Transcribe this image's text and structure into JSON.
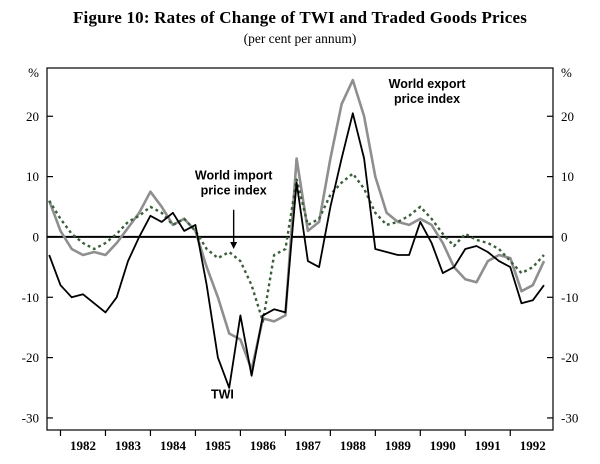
{
  "figure": {
    "title": "Figure 10: Rates of Change of TWI and Traded Goods Prices",
    "subtitle": "(per cent per annum)"
  },
  "chart_data": {
    "type": "line",
    "title": "Figure 10: Rates of Change of TWI and Traded Goods Prices",
    "subtitle": "(per cent per annum)",
    "ylabel": "%",
    "xlabel": "",
    "grid": false,
    "legend": "inline-annotations",
    "xlim": [
      1981.7,
      1992.95
    ],
    "ylim": [
      -32,
      28
    ],
    "y_ticks": [
      20,
      10,
      0,
      -10,
      -20,
      -30
    ],
    "x_tick_years": [
      1982,
      1983,
      1984,
      1985,
      1986,
      1987,
      1988,
      1989,
      1990,
      1991,
      1992
    ],
    "zero_line": true,
    "x": [
      1981.75,
      1982,
      1982.25,
      1982.5,
      1982.75,
      1983,
      1983.25,
      1983.5,
      1983.75,
      1984,
      1984.25,
      1984.5,
      1984.75,
      1985,
      1985.25,
      1985.5,
      1985.75,
      1986,
      1986.25,
      1986.5,
      1986.75,
      1987,
      1987.25,
      1987.5,
      1987.75,
      1988,
      1988.25,
      1988.5,
      1988.75,
      1989,
      1989.25,
      1989.5,
      1989.75,
      1990,
      1990.25,
      1990.5,
      1990.75,
      1991,
      1991.25,
      1991.5,
      1991.75,
      1992,
      1992.25,
      1992.5,
      1992.75
    ],
    "series": [
      {
        "name": "World export price index",
        "color": "#8f8f8f",
        "style": "solid",
        "width": 2.6,
        "values": [
          6,
          1,
          -2,
          -3,
          -2.5,
          -3,
          -1,
          1.5,
          4,
          7.5,
          5,
          2,
          3,
          1,
          -5,
          -10,
          -16,
          -17,
          -22,
          -13.5,
          -14,
          -13,
          13,
          1,
          2.5,
          13,
          22,
          26,
          20,
          10,
          4,
          2.5,
          2,
          3,
          2,
          -1,
          -5,
          -7,
          -7.5,
          -4,
          -3,
          -3.5,
          -9,
          -8,
          -4
        ]
      },
      {
        "name": "World import price index",
        "color": "#3b5e3b",
        "style": "dotted",
        "width": 2.4,
        "values": [
          6,
          3,
          0.5,
          -1,
          -2,
          -1,
          0.5,
          2.5,
          3.5,
          5,
          4,
          2,
          3,
          1,
          -2,
          -3.5,
          -2.5,
          -4,
          -8,
          -14,
          -3,
          -2,
          9.5,
          2,
          3,
          7,
          9,
          10.5,
          8,
          4,
          2,
          2.5,
          3.5,
          5,
          3,
          0.5,
          -1.5,
          0.5,
          -0.5,
          -1,
          -2,
          -4,
          -6,
          -5,
          -3
        ]
      },
      {
        "name": "TWI",
        "color": "#000000",
        "style": "solid",
        "width": 1.8,
        "values": [
          -3,
          -8,
          -10,
          -9.5,
          -11,
          -12.5,
          -10,
          -4,
          0,
          3.5,
          2.5,
          4,
          1,
          2,
          -8,
          -20,
          -25,
          -13,
          -23,
          -13,
          -12,
          -12.5,
          9,
          -4,
          -5,
          5,
          13,
          20.5,
          13,
          -2,
          -2.5,
          -3,
          -3,
          2.5,
          -1,
          -6,
          -5,
          -2,
          -1.5,
          -2.5,
          -4,
          -5,
          -11,
          -10.5,
          -8
        ]
      }
    ],
    "annotations": [
      {
        "id": "world-export-label",
        "lines": [
          "World export",
          "price index"
        ],
        "x": 1990.15,
        "y": 24.7
      },
      {
        "id": "world-import-label",
        "lines": [
          "World import",
          "price index"
        ],
        "x": 1985.85,
        "y": 9.5,
        "arrow": {
          "x": 1985.85,
          "from_y": 4.5,
          "to_y": -2.0
        }
      },
      {
        "id": "twi-label",
        "lines": [
          "TWI"
        ],
        "x": 1985.6,
        "y": -26.8
      }
    ]
  }
}
